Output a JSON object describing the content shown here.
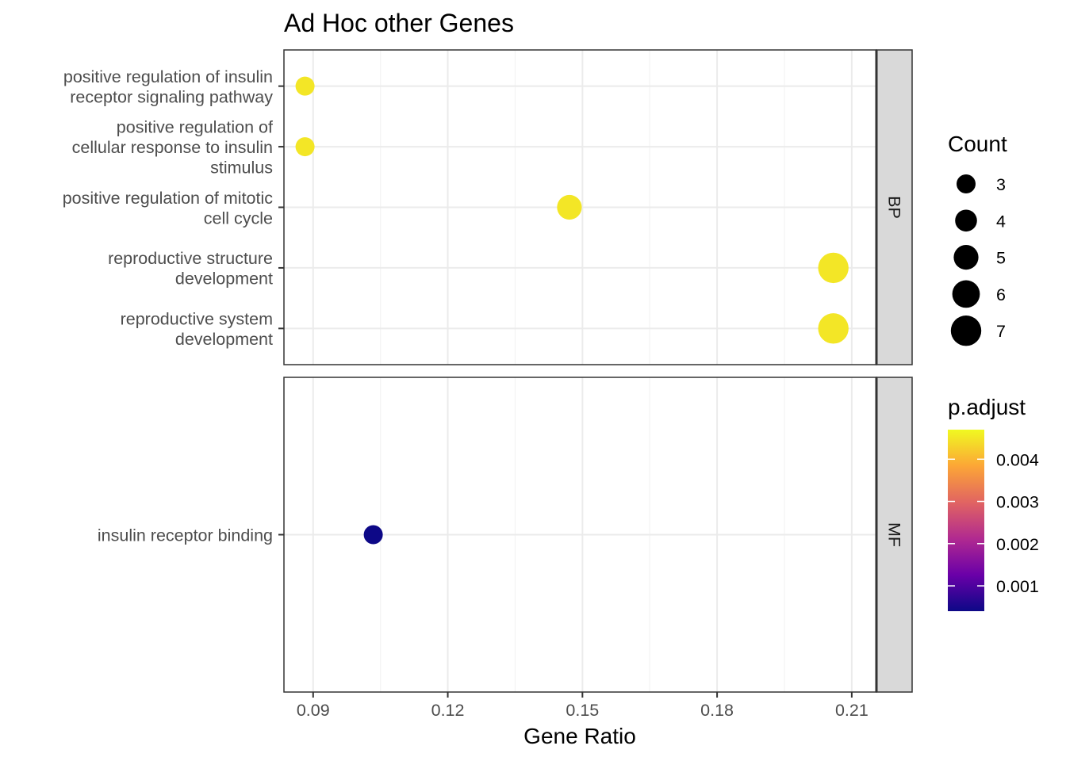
{
  "chart_data": {
    "type": "scatter",
    "title": "Ad Hoc other Genes",
    "xlabel": "Gene Ratio",
    "ylabel": "",
    "xlim": [
      0.0835,
      0.2155
    ],
    "x_ticks": [
      0.09,
      0.12,
      0.15,
      0.18,
      0.21
    ],
    "x_tick_labels": [
      "0.09",
      "0.12",
      "0.15",
      "0.18",
      "0.21"
    ],
    "grid": true,
    "facets": [
      {
        "name": "BP",
        "categories": [
          [
            "positive regulation of insulin",
            "receptor signaling pathway"
          ],
          [
            "positive regulation of",
            "cellular response to insulin",
            "stimulus"
          ],
          [
            "positive regulation of mitotic",
            "cell cycle"
          ],
          [
            "reproductive structure",
            "development"
          ],
          [
            "reproductive system",
            "development"
          ]
        ],
        "points": [
          {
            "x": 0.0882,
            "count": 3,
            "p_adjust": 0.0045
          },
          {
            "x": 0.0882,
            "count": 3,
            "p_adjust": 0.0045
          },
          {
            "x": 0.1471,
            "count": 5,
            "p_adjust": 0.0045
          },
          {
            "x": 0.2059,
            "count": 7,
            "p_adjust": 0.0045
          },
          {
            "x": 0.2059,
            "count": 7,
            "p_adjust": 0.0045
          }
        ]
      },
      {
        "name": "MF",
        "categories": [
          [
            "insulin receptor binding"
          ]
        ],
        "points": [
          {
            "x": 0.1034,
            "count": 3,
            "p_adjust": 0.0004
          }
        ]
      }
    ],
    "legends": {
      "size": {
        "title": "Count",
        "values": [
          3,
          4,
          5,
          6,
          7
        ],
        "labels": [
          "3",
          "4",
          "5",
          "6",
          "7"
        ]
      },
      "color": {
        "title": "p.adjust",
        "range": [
          0.0004,
          0.0047
        ],
        "ticks": [
          0.001,
          0.002,
          0.003,
          0.004
        ],
        "tick_labels": [
          "0.001",
          "0.002",
          "0.003",
          "0.004"
        ],
        "colors": [
          "#0d0887",
          "#6a00a8",
          "#b12a90",
          "#e16462",
          "#fca636",
          "#f0f921"
        ]
      }
    },
    "colors": {
      "panel_border": "#333333",
      "strip_fill": "#d9d9d9",
      "grid_major": "#ebebeb",
      "grid_minor": "#f4f4f4",
      "axis_text": "#4d4d4d",
      "size_legend_dot": "#000000"
    }
  }
}
